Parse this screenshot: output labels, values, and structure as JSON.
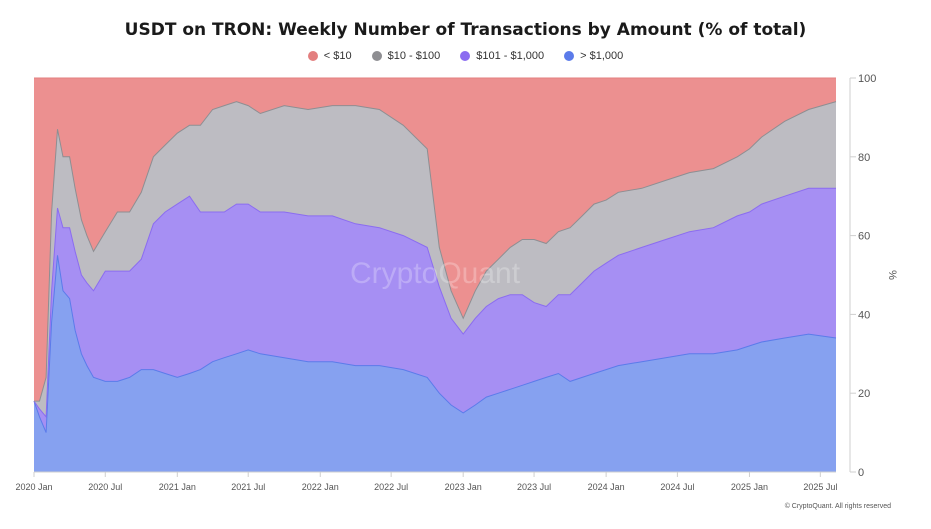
{
  "chart_data": {
    "type": "area",
    "stacking": "percent",
    "title": "USDT on TRON: Weekly Number of Transactions by Amount (% of total)",
    "xlabel": "",
    "ylabel": "%",
    "ylim": [
      0,
      100
    ],
    "yticks": [
      0,
      20,
      40,
      60,
      80,
      100
    ],
    "xlim": [
      "2020-01-01",
      "2025-08-10"
    ],
    "xticks": [
      {
        "label": "2020 Jan",
        "date": "2020-01-01"
      },
      {
        "label": "2020 Jul",
        "date": "2020-07-01"
      },
      {
        "label": "2021 Jan",
        "date": "2021-01-01"
      },
      {
        "label": "2021 Jul",
        "date": "2021-07-01"
      },
      {
        "label": "2022 Jan",
        "date": "2022-01-01"
      },
      {
        "label": "2022 Jul",
        "date": "2022-07-01"
      },
      {
        "label": "2023 Jan",
        "date": "2023-01-01"
      },
      {
        "label": "2023 Jul",
        "date": "2023-07-01"
      },
      {
        "label": "2024 Jan",
        "date": "2024-01-01"
      },
      {
        "label": "2024 Jul",
        "date": "2024-07-01"
      },
      {
        "label": "2025 Jan",
        "date": "2025-01-01"
      },
      {
        "label": "2025 Jul",
        "date": "2025-07-01"
      }
    ],
    "legend_position": "top-center",
    "grid": false,
    "x": [
      "2020-01-01",
      "2020-01-15",
      "2020-02-01",
      "2020-02-15",
      "2020-03-01",
      "2020-03-15",
      "2020-04-01",
      "2020-04-15",
      "2020-05-01",
      "2020-05-15",
      "2020-06-01",
      "2020-07-01",
      "2020-08-01",
      "2020-09-01",
      "2020-10-01",
      "2020-11-01",
      "2020-12-01",
      "2021-01-01",
      "2021-02-01",
      "2021-03-01",
      "2021-04-01",
      "2021-05-01",
      "2021-06-01",
      "2021-07-01",
      "2021-08-01",
      "2021-10-01",
      "2021-12-01",
      "2022-02-01",
      "2022-04-01",
      "2022-06-01",
      "2022-08-01",
      "2022-10-01",
      "2022-11-01",
      "2022-12-01",
      "2023-01-01",
      "2023-02-01",
      "2023-03-01",
      "2023-04-01",
      "2023-05-01",
      "2023-06-01",
      "2023-07-01",
      "2023-08-01",
      "2023-09-01",
      "2023-10-01",
      "2023-11-01",
      "2023-12-01",
      "2024-01-01",
      "2024-02-01",
      "2024-04-01",
      "2024-06-01",
      "2024-08-01",
      "2024-10-01",
      "2024-12-01",
      "2025-01-01",
      "2025-02-01",
      "2025-04-01",
      "2025-06-01",
      "2025-08-10"
    ],
    "series": [
      {
        "name": "> $1,000",
        "color": "#5b7bea",
        "fill": "#86a1f0",
        "values": [
          18,
          14,
          10,
          38,
          55,
          46,
          44,
          36,
          30,
          27,
          24,
          23,
          23,
          24,
          26,
          26,
          25,
          24,
          25,
          26,
          28,
          29,
          30,
          31,
          30,
          29,
          28,
          28,
          27,
          27,
          26,
          24,
          20,
          17,
          15,
          17,
          19,
          20,
          21,
          22,
          23,
          24,
          25,
          23,
          24,
          25,
          26,
          27,
          28,
          29,
          30,
          30,
          31,
          32,
          33,
          34,
          35,
          34
        ]
      },
      {
        "name": "$101 - $1,000",
        "color": "#8b6cf0",
        "fill": "#a68ff3",
        "values": [
          0,
          2,
          4,
          8,
          12,
          16,
          18,
          20,
          20,
          21,
          22,
          28,
          28,
          27,
          28,
          37,
          41,
          44,
          45,
          40,
          38,
          37,
          38,
          37,
          36,
          37,
          37,
          37,
          36,
          35,
          34,
          33,
          27,
          22,
          20,
          22,
          23,
          24,
          24,
          23,
          20,
          18,
          20,
          22,
          24,
          26,
          27,
          28,
          29,
          30,
          31,
          32,
          34,
          34,
          35,
          36,
          37,
          38
        ]
      },
      {
        "name": "$10 - $100",
        "color": "#8e8e92",
        "fill": "#bdbcc2",
        "values": [
          0,
          2,
          10,
          20,
          20,
          18,
          18,
          16,
          14,
          12,
          10,
          10,
          15,
          15,
          17,
          17,
          17,
          18,
          18,
          22,
          26,
          27,
          26,
          25,
          25,
          27,
          27,
          28,
          30,
          30,
          28,
          25,
          10,
          7,
          4,
          7,
          9,
          10,
          12,
          14,
          16,
          16,
          16,
          17,
          17,
          17,
          16,
          16,
          15,
          15,
          15,
          15,
          15,
          16,
          17,
          19,
          20,
          22
        ]
      },
      {
        "name": "< $10",
        "color": "#e37f7f",
        "fill": "#ec9090",
        "values": [
          82,
          82,
          76,
          34,
          13,
          20,
          20,
          28,
          36,
          40,
          44,
          39,
          34,
          34,
          29,
          20,
          17,
          14,
          12,
          12,
          8,
          7,
          6,
          7,
          9,
          7,
          8,
          7,
          7,
          8,
          12,
          18,
          43,
          54,
          61,
          54,
          49,
          46,
          43,
          41,
          41,
          42,
          39,
          38,
          35,
          32,
          31,
          29,
          28,
          26,
          24,
          23,
          20,
          18,
          15,
          11,
          8,
          6
        ]
      }
    ]
  },
  "watermark": "CryptoQuant",
  "footer": "© CryptoQuant. All rights reserved",
  "colors": {
    "axis": "#cfcfcf",
    "tick_text": "#555555"
  }
}
